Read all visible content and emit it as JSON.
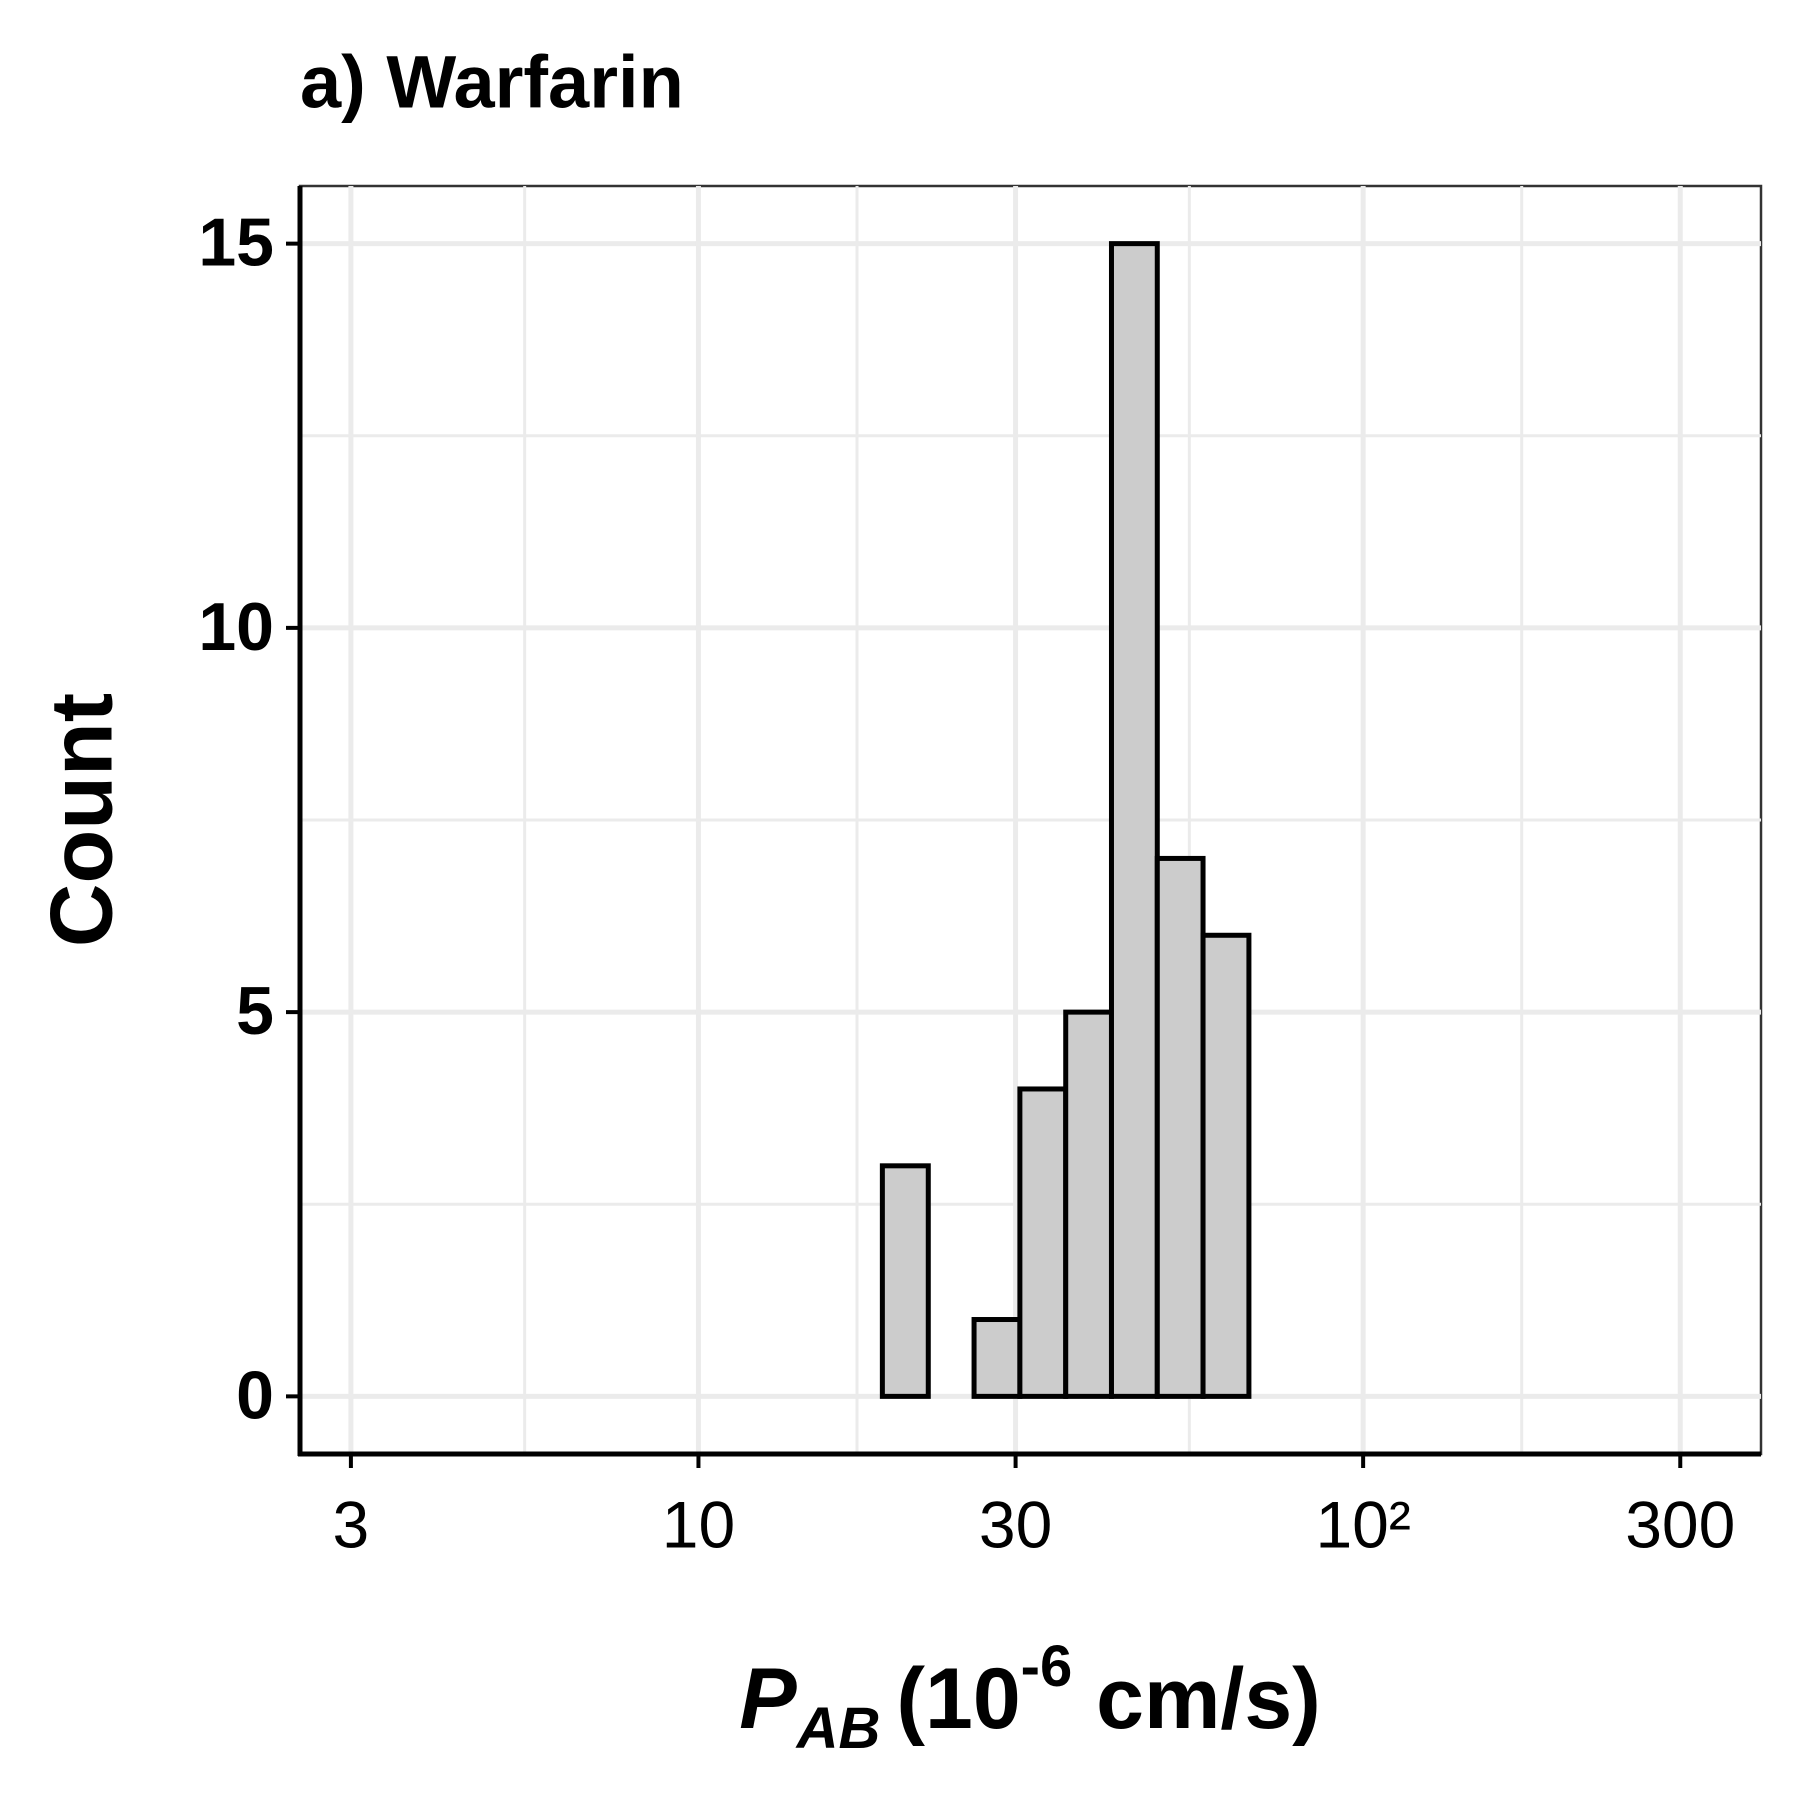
{
  "chart_data": {
    "type": "histogram",
    "title": "a) Warfarin",
    "x_label": {
      "symbol": "P",
      "subscript": "AB",
      "prefix": "(10",
      "exponent": "-6",
      "suffix": " cm/s)"
    },
    "y_label": "Count",
    "bins": [
      3.302,
      3.869,
      4.534,
      5.314,
      6.229,
      7.3,
      8.554,
      10.03,
      11.75,
      13.77,
      16.14,
      18.91,
      22.17,
      25.98,
      30.45,
      35.69,
      41.82,
      49.01,
      57.43,
      67.32,
      78.9,
      92.47,
      108.4,
      127.0,
      148.9,
      174.5,
      204.5,
      239.7,
      280.9
    ],
    "values": [
      0,
      0,
      0,
      0,
      0,
      0,
      0,
      0,
      0,
      0,
      0,
      3,
      0,
      1,
      4,
      5,
      15,
      7,
      6,
      0,
      0,
      0,
      0,
      0,
      0,
      0,
      0,
      0
    ],
    "color": "#cccccc",
    "edge_color": "#000000",
    "xscale": "log",
    "xlim": [
      2.515,
      396.8
    ],
    "xticks": [
      3,
      10,
      30,
      {
        "value": 100,
        "label": "10²"
      },
      300
    ],
    "ylim": [
      -0.75,
      15.75
    ],
    "yticks": [
      0,
      5,
      10,
      15
    ],
    "grid": true
  }
}
